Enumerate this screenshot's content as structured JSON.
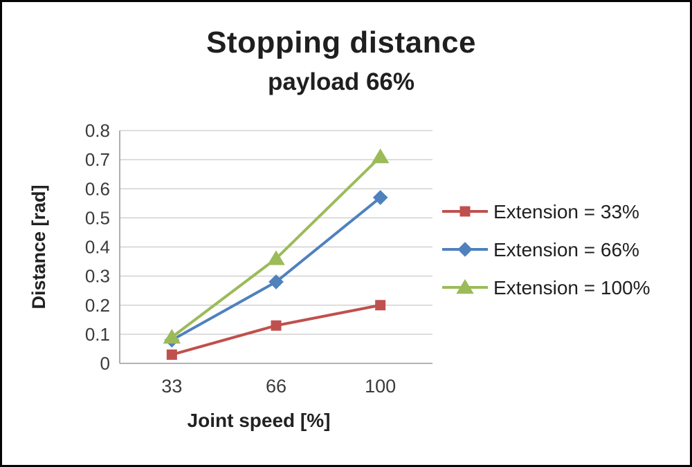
{
  "chart_data": {
    "type": "line",
    "title": "Stopping distance",
    "subtitle": "payload 66%",
    "xlabel": "Joint speed [%]",
    "ylabel": "Distance [rad]",
    "categories": [
      33,
      66,
      100
    ],
    "x_tick_labels": [
      "33",
      "66",
      "100"
    ],
    "y_tick_labels": [
      "0",
      "0.1",
      "0.2",
      "0.3",
      "0.4",
      "0.5",
      "0.6",
      "0.7",
      "0.8"
    ],
    "ylim": [
      0,
      0.8
    ],
    "y_tick_step": 0.1,
    "grid": "horizontal",
    "legend_position": "right",
    "series": [
      {
        "name": "Extension = 33%",
        "marker": "square",
        "color": "#C0504D",
        "values": [
          0.03,
          0.13,
          0.2
        ]
      },
      {
        "name": "Extension = 66%",
        "marker": "diamond",
        "color": "#4F81BD",
        "values": [
          0.08,
          0.28,
          0.57
        ]
      },
      {
        "name": "Extension = 100%",
        "marker": "triangle",
        "color": "#9BBB59",
        "values": [
          0.09,
          0.36,
          0.71
        ]
      }
    ]
  }
}
